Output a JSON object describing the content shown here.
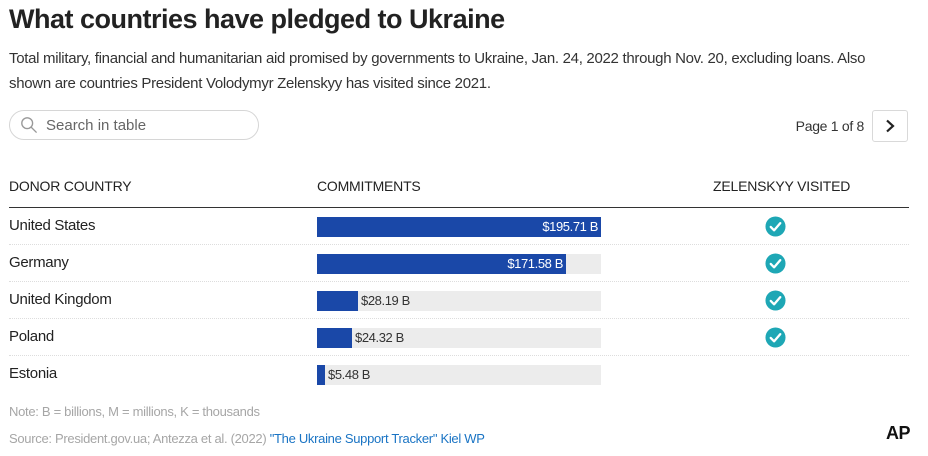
{
  "title": "What countries have pledged to Ukraine",
  "subtitle": "Total military, financial and humanitarian aid promised by governments to Ukraine, Jan. 24, 2022 through Nov. 20, excluding loans. Also shown are countries President Volodymyr Zelenskyy has visited since 2021.",
  "search": {
    "placeholder": "Search in table",
    "icon": "search-icon"
  },
  "pagination": {
    "text": "Page 1 of 8",
    "next_icon": "chevron-right-icon"
  },
  "columns": [
    "DONOR COUNTRY",
    "COMMITMENTS",
    "ZELENSKYY VISITED"
  ],
  "max_value": 195.71,
  "rows": [
    {
      "country": "United States",
      "value": 195.71,
      "label": "$195.71 B",
      "visited": true
    },
    {
      "country": "Germany",
      "value": 171.58,
      "label": "$171.58 B",
      "visited": true
    },
    {
      "country": "United Kingdom",
      "value": 28.19,
      "label": "$28.19 B",
      "visited": true
    },
    {
      "country": "Poland",
      "value": 24.32,
      "label": "$24.32 B",
      "visited": true
    },
    {
      "country": "Estonia",
      "value": 5.48,
      "label": "$5.48 B",
      "visited": false
    }
  ],
  "note": "Note: B = billions, M = millions, K = thousands",
  "source": {
    "prefix": "Source: President.gov.ua; Antezza et al. (2022) ",
    "link_text": "\"The Ukraine Support Tracker\" Kiel WP"
  },
  "logo": "AP",
  "colors": {
    "bar": "#1a48a8",
    "track": "#ececec",
    "check": "#1ea7b5",
    "link": "#1a74c4"
  }
}
